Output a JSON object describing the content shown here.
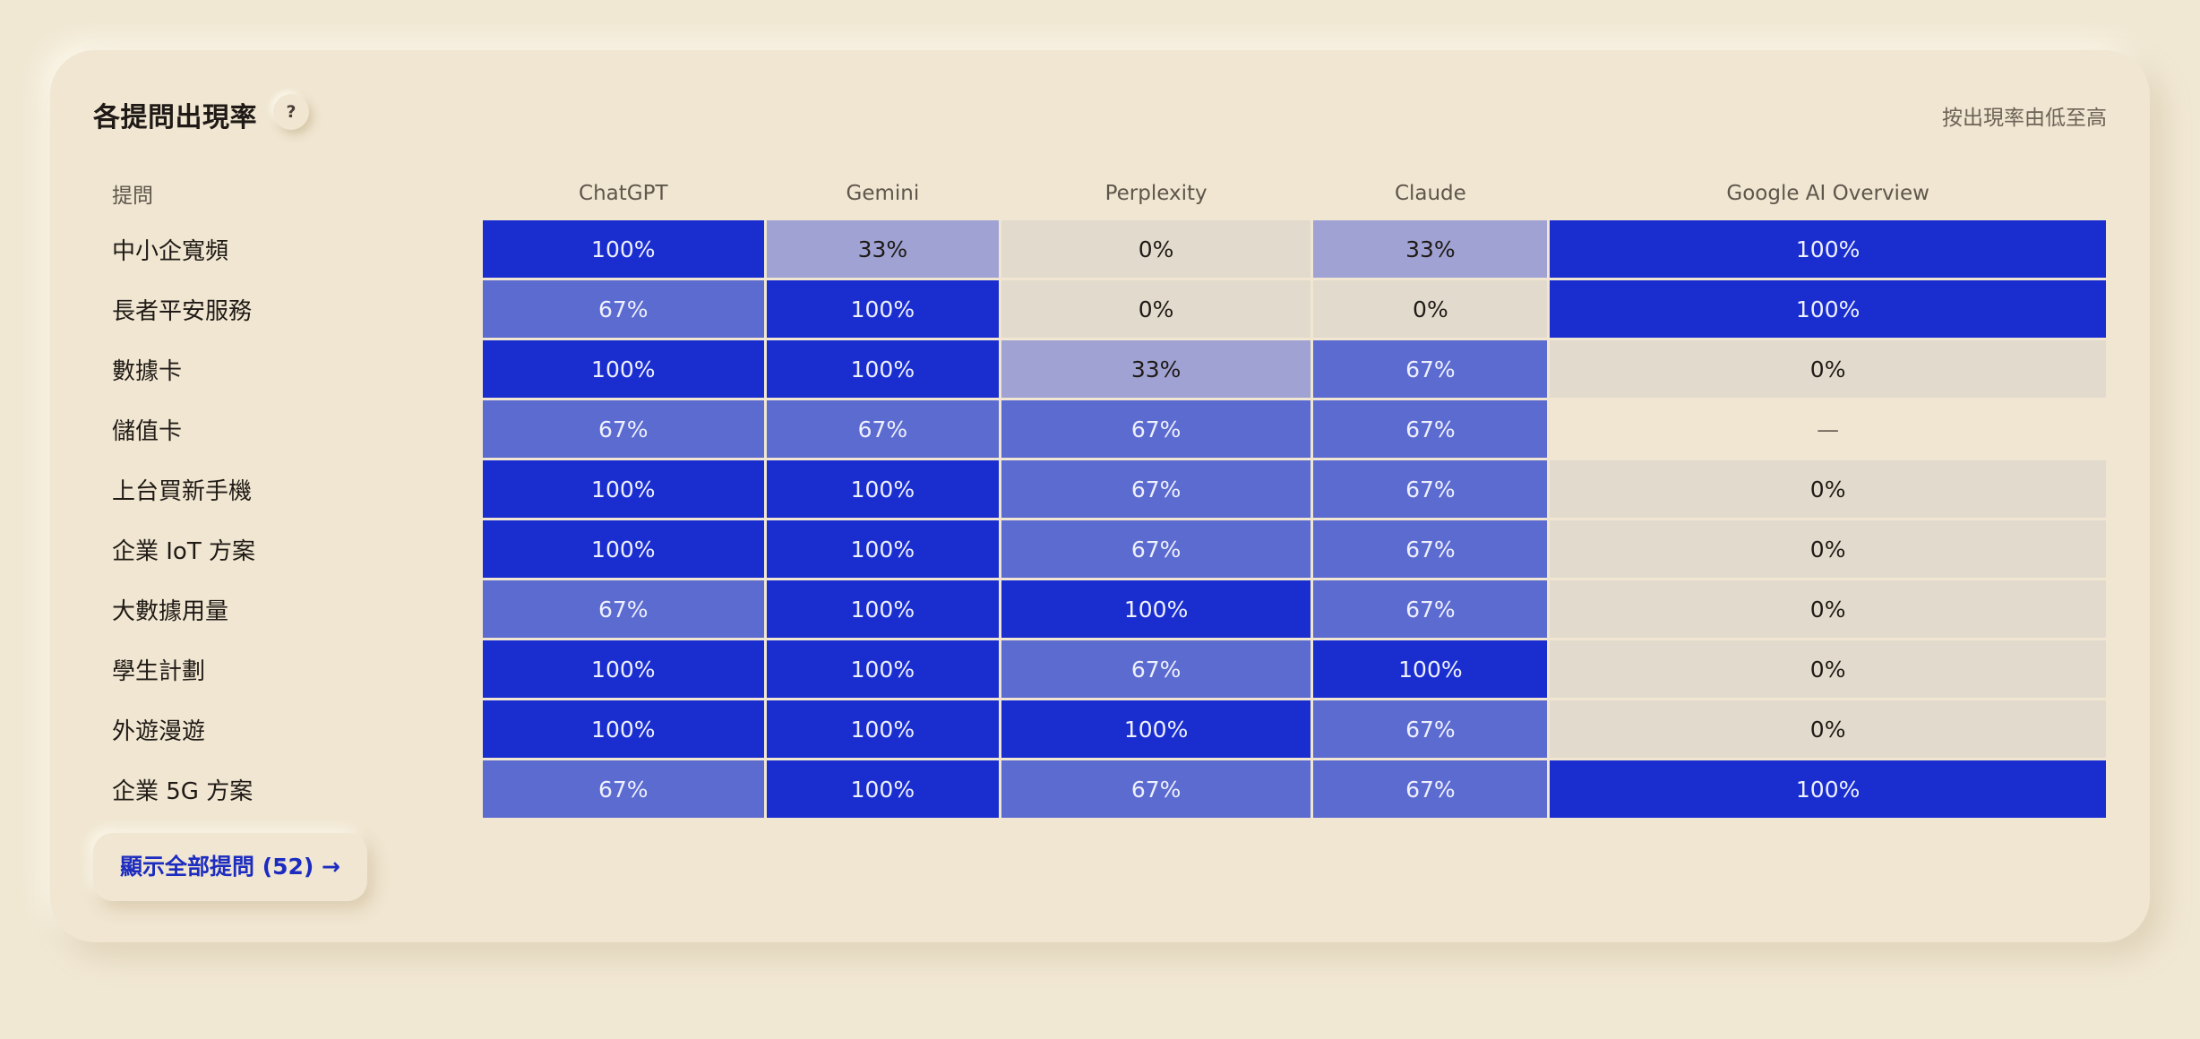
{
  "card": {
    "title": "各提問出現率",
    "help_label": "?",
    "sort_label": "按出現率由低至高",
    "show_all_label": "顯示全部提問 (52) →"
  },
  "colors": {
    "v100": "#1a2ecf",
    "v67": "#5c6bd0",
    "v33": "#9fa2d3",
    "v0": "#e2dbcd"
  },
  "table": {
    "question_header": "提問",
    "columns": [
      "ChatGPT",
      "Gemini",
      "Perplexity",
      "Claude",
      "Google AI Overview"
    ],
    "rows": [
      {
        "question": "中小企寬頻",
        "values": [
          "100%",
          "33%",
          "0%",
          "33%",
          "100%"
        ]
      },
      {
        "question": "長者平安服務",
        "values": [
          "67%",
          "100%",
          "0%",
          "0%",
          "100%"
        ]
      },
      {
        "question": "數據卡",
        "values": [
          "100%",
          "100%",
          "33%",
          "67%",
          "0%"
        ]
      },
      {
        "question": "儲值卡",
        "values": [
          "67%",
          "67%",
          "67%",
          "67%",
          "—"
        ]
      },
      {
        "question": "上台買新手機",
        "values": [
          "100%",
          "100%",
          "67%",
          "67%",
          "0%"
        ]
      },
      {
        "question": "企業 IoT 方案",
        "values": [
          "100%",
          "100%",
          "67%",
          "67%",
          "0%"
        ]
      },
      {
        "question": "大數據用量",
        "values": [
          "67%",
          "100%",
          "100%",
          "67%",
          "0%"
        ]
      },
      {
        "question": "學生計劃",
        "values": [
          "100%",
          "100%",
          "67%",
          "100%",
          "0%"
        ]
      },
      {
        "question": "外遊漫遊",
        "values": [
          "100%",
          "100%",
          "100%",
          "67%",
          "0%"
        ]
      },
      {
        "question": "企業 5G 方案",
        "values": [
          "67%",
          "100%",
          "67%",
          "67%",
          "100%"
        ]
      }
    ]
  }
}
